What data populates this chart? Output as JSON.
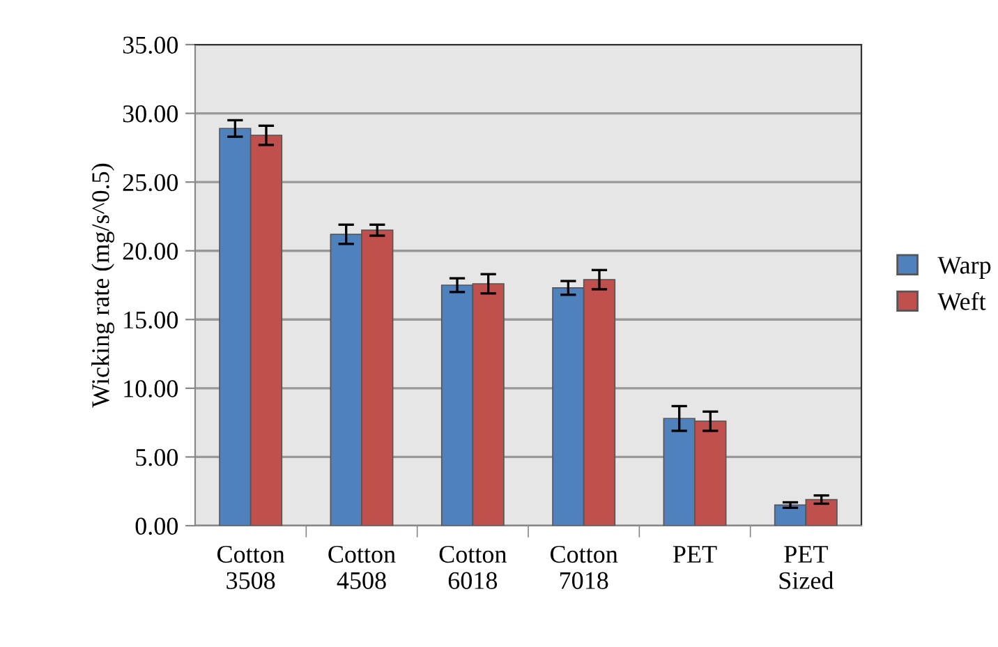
{
  "chart_data": {
    "type": "bar",
    "ylabel": "Wicking rate (mg/s^0.5)",
    "categories": [
      "Cotton 3508",
      "Cotton 4508",
      "Cotton 6018",
      "Cotton 7018",
      "PET",
      "PET Sized"
    ],
    "series": [
      {
        "name": "Warp",
        "color": "#4f81bd",
        "values": [
          28.9,
          21.2,
          17.5,
          17.3,
          7.8,
          1.5
        ],
        "errors": [
          0.6,
          0.7,
          0.5,
          0.5,
          0.9,
          0.2
        ]
      },
      {
        "name": "Weft",
        "color": "#c0504d",
        "values": [
          28.4,
          21.5,
          17.6,
          17.9,
          7.6,
          1.9
        ],
        "errors": [
          0.7,
          0.4,
          0.7,
          0.7,
          0.7,
          0.3
        ]
      }
    ],
    "ylim": [
      0,
      35
    ],
    "yticks": [
      {
        "value": 0,
        "label": "0.00"
      },
      {
        "value": 5,
        "label": "5.00"
      },
      {
        "value": 10,
        "label": "10.00"
      },
      {
        "value": 15,
        "label": "15.00"
      },
      {
        "value": 20,
        "label": "20.00"
      },
      {
        "value": 25,
        "label": "25.00"
      },
      {
        "value": 30,
        "label": "30.00"
      },
      {
        "value": 35,
        "label": "35.00"
      }
    ],
    "grid": "y",
    "legend": "right"
  }
}
